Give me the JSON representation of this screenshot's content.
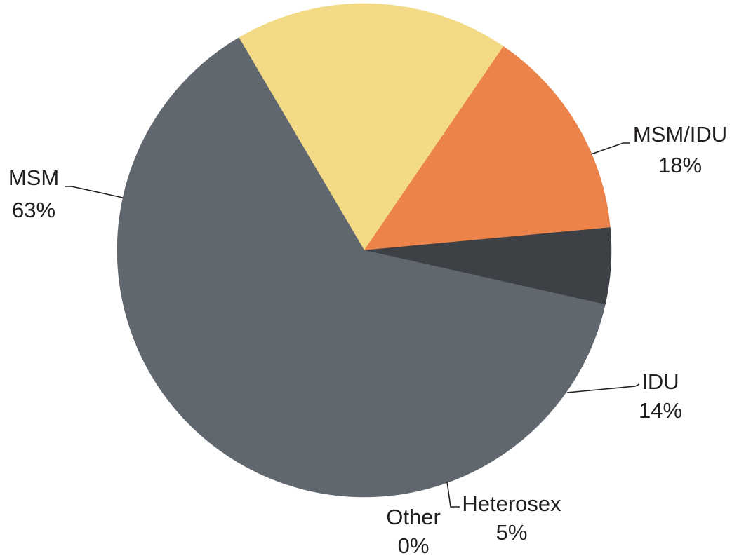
{
  "chart_data": {
    "type": "pie",
    "slices": [
      {
        "label": "MSM/IDU",
        "value": 18,
        "value_label": "18%",
        "color": "#f2da86"
      },
      {
        "label": "IDU",
        "value": 14,
        "value_label": "14%",
        "color": "#ec834a"
      },
      {
        "label": "Heterosex",
        "value": 5,
        "value_label": "5%",
        "color": "#3d4045"
      },
      {
        "label": "Other",
        "value": 0,
        "value_label": "0%",
        "color": "#b9b9b9"
      },
      {
        "label": "MSM",
        "value": 63,
        "value_label": "63%",
        "color": "#61676f"
      }
    ],
    "start_label": "MSM/IDU",
    "direction": "clockwise",
    "legend": "none",
    "labels": "outside with leader lines"
  }
}
